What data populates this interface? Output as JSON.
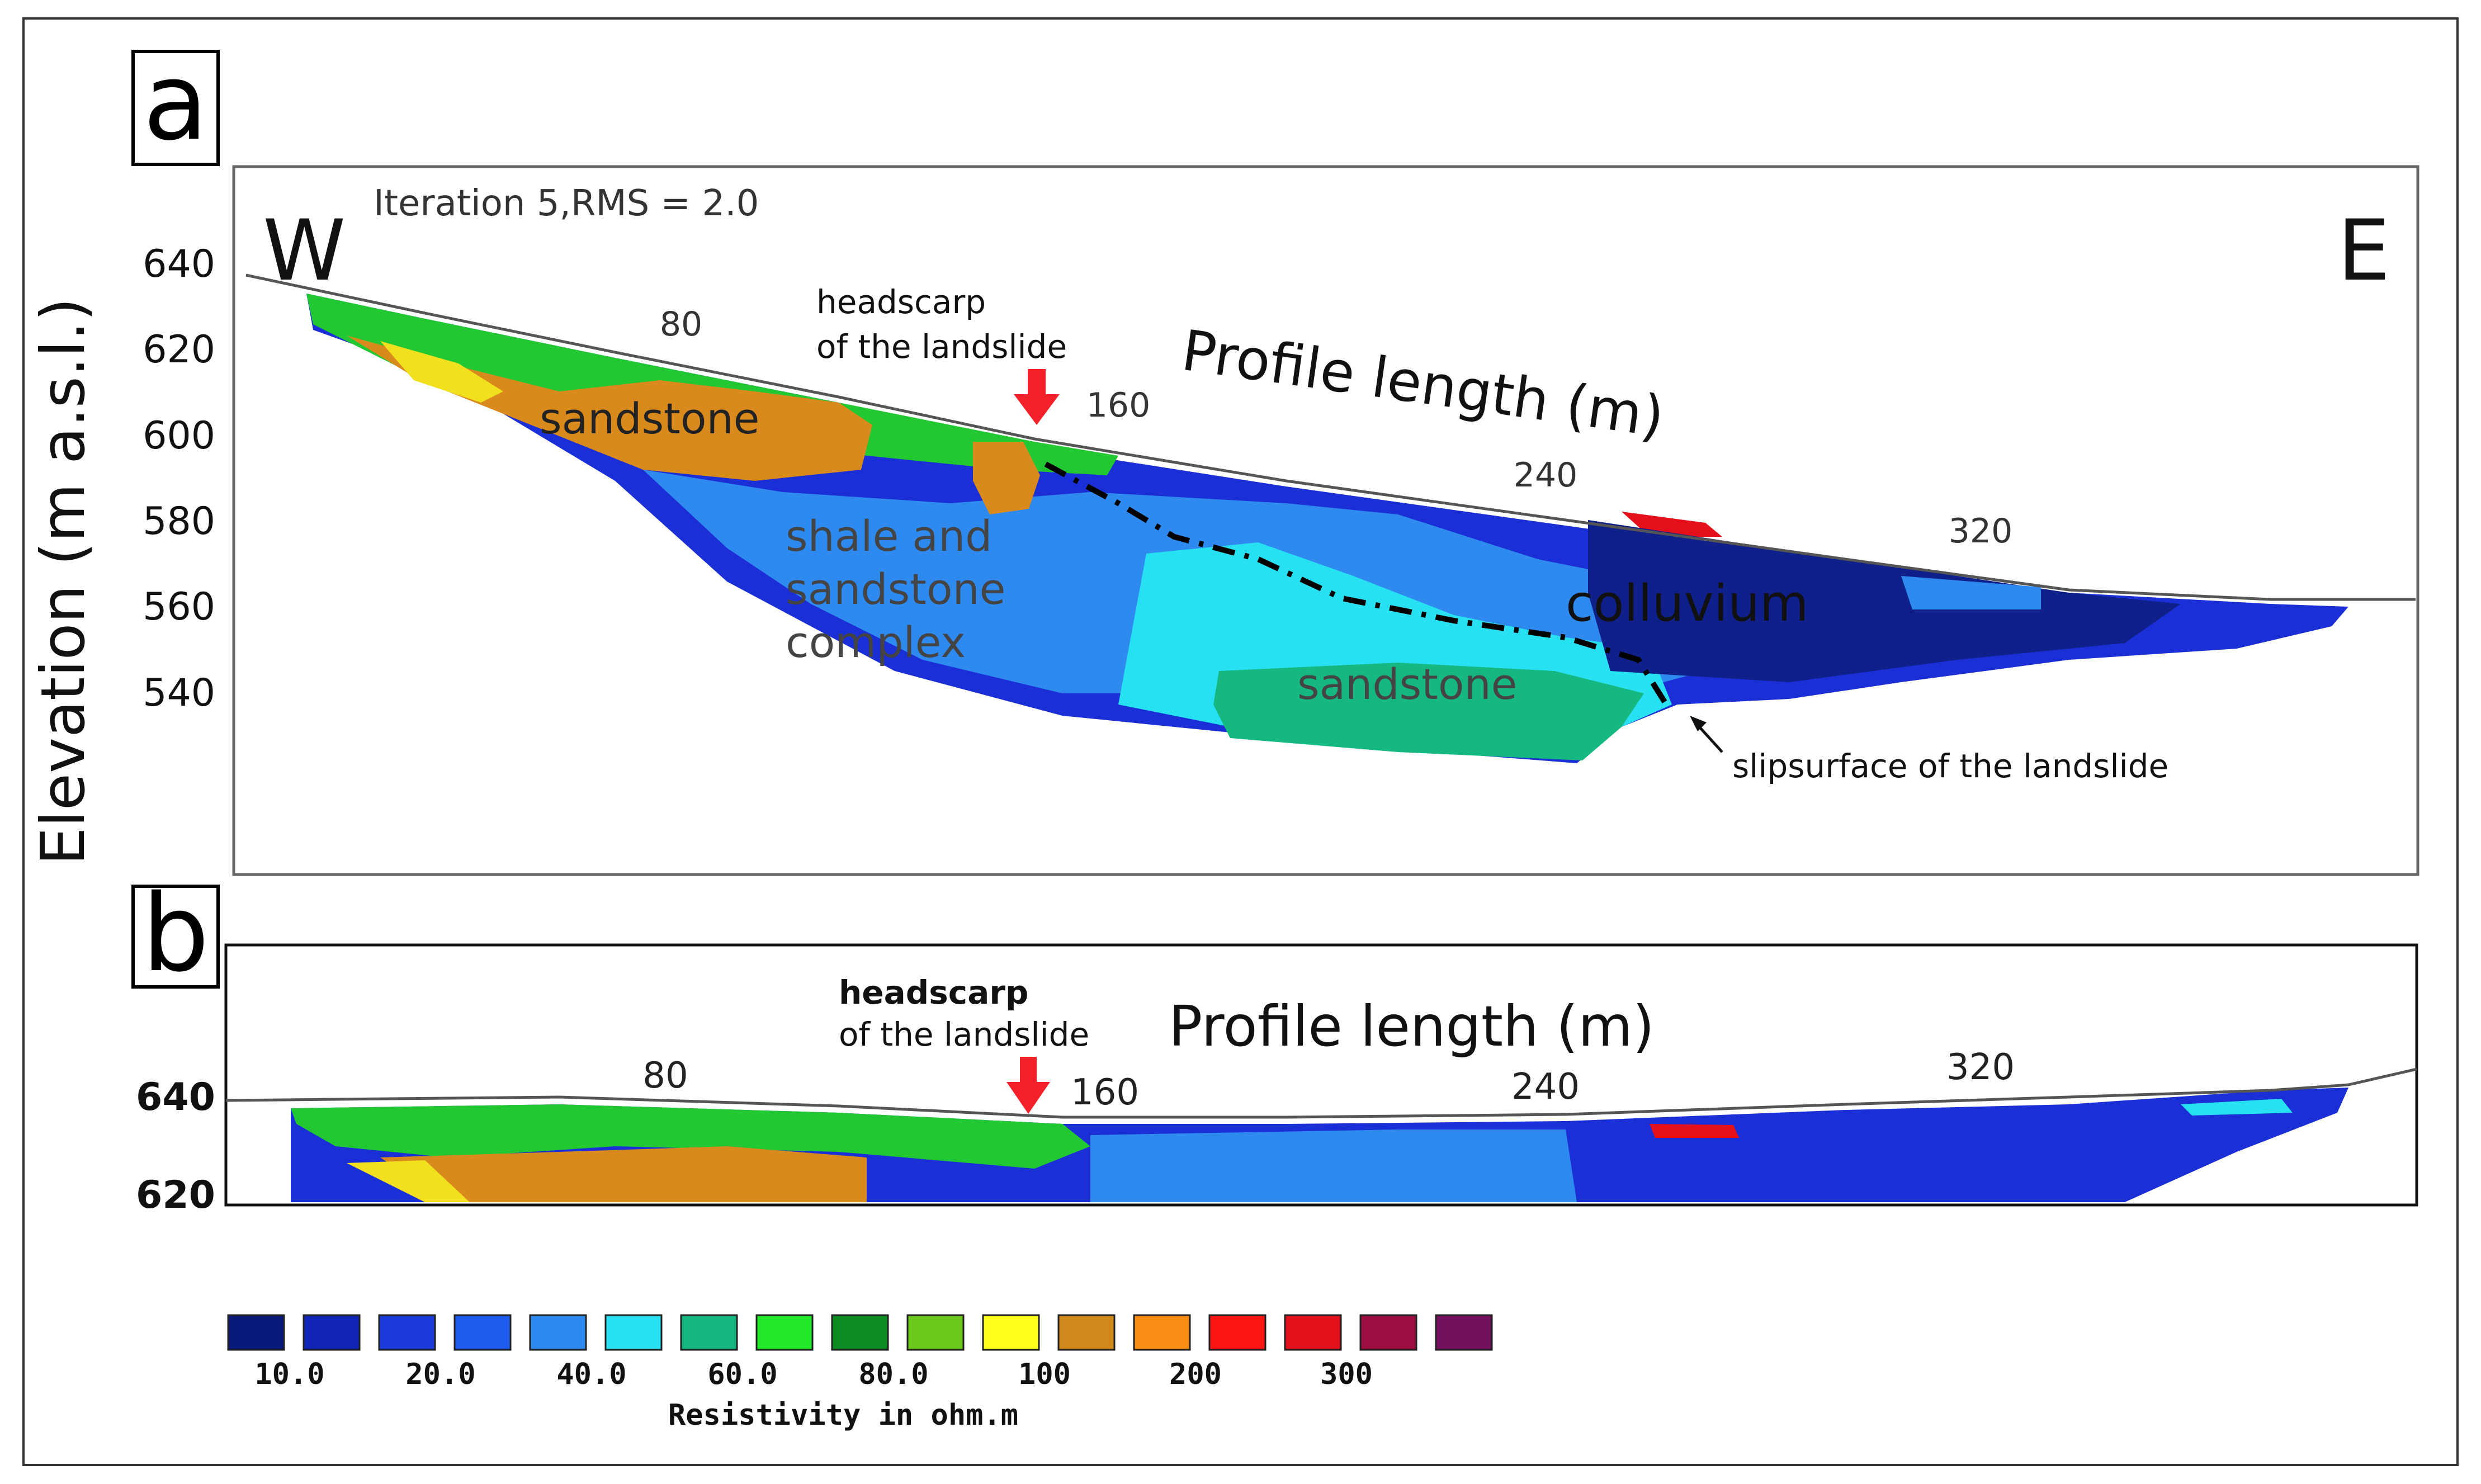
{
  "panel_a": {
    "letter": "a",
    "iteration": "Iteration 5,RMS = 2.0",
    "west": "W",
    "east": "E",
    "xlabel": "Profile length (m)",
    "x_ticks": [
      "80",
      "160",
      "240",
      "320"
    ],
    "y_ticks": [
      "640",
      "620",
      "600",
      "580",
      "560",
      "540"
    ],
    "headscarp_line1": "headscarp",
    "headscarp_line2": "of the landslide",
    "labels": {
      "sandstone_upper": "sandstone",
      "shale_line1": "shale and",
      "shale_line2": "sandstone",
      "shale_line3": "complex",
      "colluvium": "colluvium",
      "sandstone_lower": "sandstone",
      "slipsurface": "slipsurface of the landslide"
    }
  },
  "panel_b": {
    "letter": "b",
    "xlabel": "Profile length (m)",
    "x_ticks": [
      "80",
      "160",
      "240",
      "320"
    ],
    "y_ticks": [
      "640",
      "620"
    ],
    "headscarp_line1": "headscarp",
    "headscarp_line2": "of the landslide"
  },
  "ylabel": "Elevation (m a.s.l.)",
  "legend": {
    "title": "Resistivity in ohm.m",
    "swatch_colors": [
      "#0a1a7a",
      "#1024b8",
      "#1a3adc",
      "#1e5cf0",
      "#2f8af0",
      "#27e1f2",
      "#16b882",
      "#22e82a",
      "#0e8c24",
      "#6cc81c",
      "#ffff1e",
      "#d2891c",
      "#f78d12",
      "#ff1414",
      "#e4101c",
      "#9c0e42",
      "#73115e"
    ],
    "tick_labels": [
      "10.0",
      "20.0",
      "40.0",
      "60.0",
      "80.0",
      "100",
      "200",
      "300"
    ]
  },
  "colors": {
    "arrow": "#f4212b",
    "deep_blue": "#1a2fd6",
    "mid_blue": "#2f8af0",
    "cyan": "#27e1f2",
    "teal": "#16b882",
    "orange": "#d98a1c"
  }
}
